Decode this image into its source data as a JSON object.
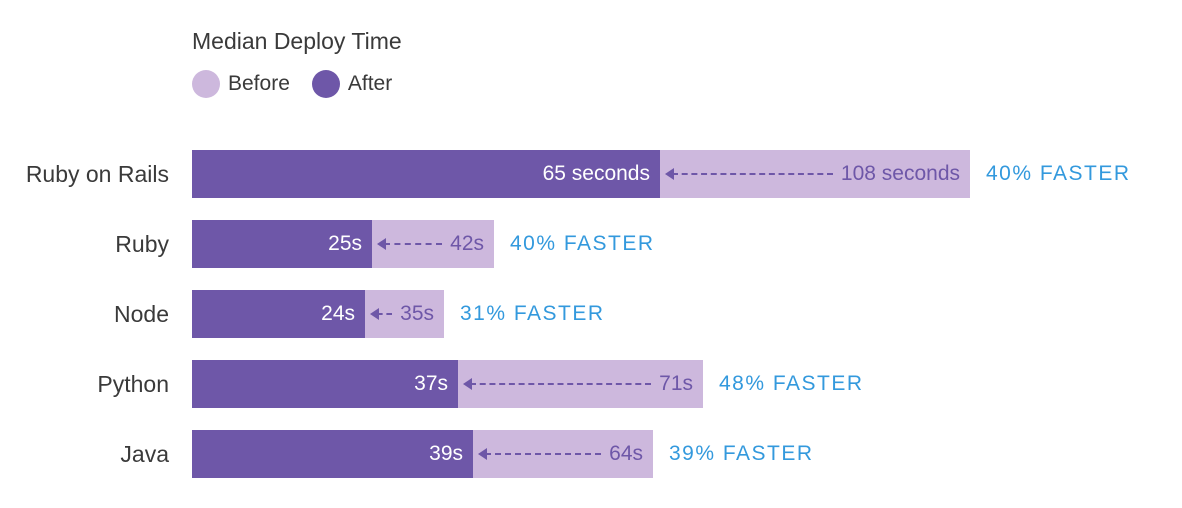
{
  "chart_data": {
    "type": "bar",
    "title": "Median Deploy Time",
    "legend": [
      {
        "name": "Before",
        "color": "#cdb8dd"
      },
      {
        "name": "After",
        "color": "#6e57a8"
      }
    ],
    "categories": [
      "Ruby on Rails",
      "Ruby",
      "Node",
      "Python",
      "Java"
    ],
    "series": [
      {
        "name": "Before",
        "values": [
          108,
          42,
          35,
          71,
          64
        ]
      },
      {
        "name": "After",
        "values": [
          65,
          25,
          24,
          37,
          39
        ]
      }
    ],
    "value_labels": {
      "before": [
        "108 seconds",
        "42s",
        "35s",
        "71s",
        "64s"
      ],
      "after": [
        "65 seconds",
        "25s",
        "24s",
        "37s",
        "39s"
      ]
    },
    "annotations": [
      "40% FASTER",
      "40% FASTER",
      "31% FASTER",
      "48% FASTER",
      "39% FASTER"
    ],
    "xlabel": "",
    "ylabel": "",
    "unit": "seconds",
    "orientation": "horizontal",
    "grid": false,
    "legend_position": "top-left"
  },
  "colors": {
    "before": "#cdb8dd",
    "after": "#6e57a8",
    "faster": "#3399dd"
  }
}
